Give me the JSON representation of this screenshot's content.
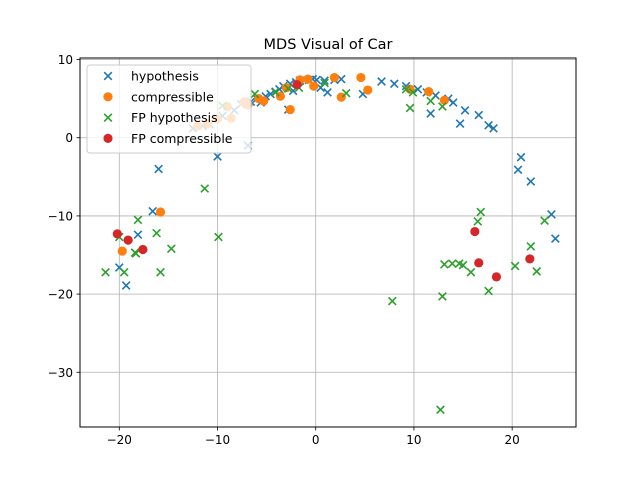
{
  "chart_data": {
    "type": "scatter",
    "title": "MDS Visual of Car",
    "xlabel": "",
    "ylabel": "",
    "xlim": [
      -24,
      26.5
    ],
    "ylim": [
      -37,
      10.2
    ],
    "xticks": [
      -20,
      -10,
      0,
      10,
      20
    ],
    "yticks": [
      -30,
      -20,
      -10,
      0,
      10
    ],
    "xtick_labels": [
      "−20",
      "−10",
      "0",
      "10",
      "20"
    ],
    "ytick_labels": [
      "−30",
      "−20",
      "−10",
      "0",
      "10"
    ],
    "grid": true,
    "legend_position": "top-left",
    "series": [
      {
        "name": "hypothesis",
        "marker": "x",
        "color": "#1f77b4",
        "points": [
          [
            -20.0,
            -16.6
          ],
          [
            -19.3,
            -18.9
          ],
          [
            -18.1,
            -12.4
          ],
          [
            -16.6,
            -9.4
          ],
          [
            -16.0,
            -4.0
          ],
          [
            -12.5,
            1.2
          ],
          [
            -11.5,
            1.5
          ],
          [
            -10.8,
            1.7
          ],
          [
            -10.0,
            -2.4
          ],
          [
            -9.5,
            2.8
          ],
          [
            -8.3,
            3.5
          ],
          [
            -7.6,
            4.3
          ],
          [
            -6.9,
            -1.0
          ],
          [
            -6.6,
            4.6
          ],
          [
            -6.0,
            5.0
          ],
          [
            -5.6,
            4.5
          ],
          [
            -5.1,
            5.3
          ],
          [
            -4.6,
            5.6
          ],
          [
            -4.1,
            5.9
          ],
          [
            -3.7,
            6.2
          ],
          [
            -3.3,
            6.6
          ],
          [
            -2.8,
            3.6
          ],
          [
            -2.6,
            6.9
          ],
          [
            -2.3,
            6.0
          ],
          [
            -2.0,
            7.1
          ],
          [
            -1.6,
            7.3
          ],
          [
            -1.2,
            7.4
          ],
          [
            -0.7,
            7.4
          ],
          [
            -0.3,
            7.5
          ],
          [
            0.1,
            7.4
          ],
          [
            0.5,
            6.4
          ],
          [
            0.9,
            7.3
          ],
          [
            1.2,
            5.8
          ],
          [
            1.9,
            7.4
          ],
          [
            2.6,
            7.5
          ],
          [
            4.8,
            5.6
          ],
          [
            6.7,
            7.2
          ],
          [
            8.0,
            6.9
          ],
          [
            9.2,
            6.6
          ],
          [
            10.4,
            6.2
          ],
          [
            11.3,
            5.8
          ],
          [
            11.7,
            3.1
          ],
          [
            12.2,
            5.4
          ],
          [
            13.5,
            5.0
          ],
          [
            14.0,
            4.5
          ],
          [
            14.7,
            1.8
          ],
          [
            15.2,
            3.5
          ],
          [
            16.6,
            2.9
          ],
          [
            17.6,
            1.6
          ],
          [
            18.1,
            1.2
          ],
          [
            20.6,
            -4.1
          ],
          [
            20.9,
            -2.5
          ],
          [
            21.9,
            -5.6
          ],
          [
            24.0,
            -9.8
          ],
          [
            24.4,
            -12.9
          ]
        ]
      },
      {
        "name": "compressible",
        "marker": "o",
        "color": "#ff7f0e",
        "points": [
          [
            -19.7,
            -14.5
          ],
          [
            -15.8,
            -9.5
          ],
          [
            -12.0,
            1.5
          ],
          [
            -11.0,
            1.8
          ],
          [
            -10.0,
            2.4
          ],
          [
            -9.0,
            4.0
          ],
          [
            -8.6,
            2.5
          ],
          [
            -7.3,
            4.6
          ],
          [
            -6.9,
            4.2
          ],
          [
            -5.8,
            5.0
          ],
          [
            -5.3,
            4.7
          ],
          [
            -3.6,
            5.3
          ],
          [
            -3.0,
            6.4
          ],
          [
            -2.6,
            3.6
          ],
          [
            -1.6,
            7.4
          ],
          [
            -0.8,
            7.5
          ],
          [
            -0.2,
            6.6
          ],
          [
            1.9,
            7.7
          ],
          [
            2.6,
            5.2
          ],
          [
            4.6,
            7.7
          ],
          [
            5.3,
            6.1
          ],
          [
            9.6,
            6.2
          ],
          [
            11.5,
            5.9
          ],
          [
            13.1,
            4.8
          ]
        ]
      },
      {
        "name": "FP hypothesis",
        "marker": "x",
        "color": "#2ca02c",
        "points": [
          [
            -21.4,
            -17.2
          ],
          [
            -20.0,
            -12.7
          ],
          [
            -19.5,
            -17.2
          ],
          [
            -18.4,
            -14.7
          ],
          [
            -18.3,
            -14.8
          ],
          [
            -18.1,
            -10.5
          ],
          [
            -16.2,
            -12.2
          ],
          [
            -15.8,
            -17.2
          ],
          [
            -14.7,
            -14.2
          ],
          [
            -11.3,
            -6.5
          ],
          [
            -9.9,
            -12.7
          ],
          [
            -9.5,
            4.1
          ],
          [
            -6.2,
            5.6
          ],
          [
            -4.1,
            5.8
          ],
          [
            -2.8,
            6.3
          ],
          [
            -1.7,
            6.4
          ],
          [
            0.9,
            7.0
          ],
          [
            3.1,
            5.7
          ],
          [
            7.8,
            -20.9
          ],
          [
            9.2,
            6.2
          ],
          [
            9.6,
            3.8
          ],
          [
            9.9,
            5.8
          ],
          [
            11.7,
            4.7
          ],
          [
            12.9,
            -20.3
          ],
          [
            12.9,
            4.0
          ],
          [
            12.7,
            -34.8
          ],
          [
            13.1,
            -16.2
          ],
          [
            13.9,
            -16.1
          ],
          [
            14.6,
            -16.1
          ],
          [
            15.0,
            -16.3
          ],
          [
            15.8,
            -17.2
          ],
          [
            16.5,
            -10.7
          ],
          [
            16.8,
            -9.5
          ],
          [
            17.6,
            -19.6
          ],
          [
            20.3,
            -16.4
          ],
          [
            21.9,
            -13.9
          ],
          [
            22.5,
            -17.1
          ],
          [
            23.3,
            -10.6
          ]
        ]
      },
      {
        "name": "FP compressible",
        "marker": "o",
        "color": "#d62728",
        "points": [
          [
            -20.2,
            -12.3
          ],
          [
            -19.1,
            -13.1
          ],
          [
            -17.6,
            -14.3
          ],
          [
            -1.9,
            6.8
          ],
          [
            16.2,
            -12.0
          ],
          [
            16.6,
            -16.0
          ],
          [
            18.4,
            -17.8
          ],
          [
            21.8,
            -15.5
          ]
        ]
      }
    ]
  }
}
